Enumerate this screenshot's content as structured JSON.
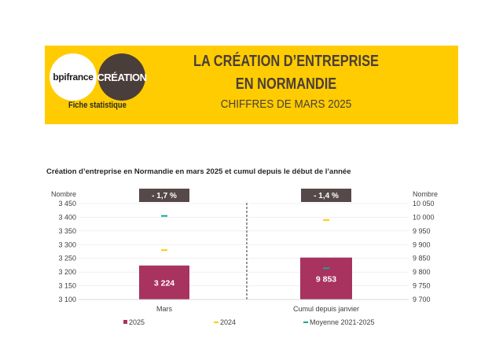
{
  "header": {
    "logo_left": "bpifrance",
    "logo_right": "CRÉATION",
    "fiche": "Fiche statistique",
    "title_line1": "LA CRÉATION D’ENTREPRISE",
    "title_line2": "EN NORMANDIE",
    "subtitle": "CHIFFRES DE MARS 2025",
    "banner_color": "#FECC00"
  },
  "chart_data": {
    "type": "bar",
    "title": "Création d’entreprise en Normandie en mars 2025 et cumul depuis le début de l’année",
    "colors": {
      "bar_2025": "#A8335F",
      "marker_2024": "#FECC00",
      "marker_avg": "#13A88E",
      "badge": "#55494A"
    },
    "legend": [
      "2025",
      "2024",
      "Moyenne 2021-2025"
    ],
    "panels": [
      {
        "category": "Mars",
        "axis_label": "Nombre",
        "ylim": [
          3100,
          3450
        ],
        "ticks": [
          3100,
          3150,
          3200,
          3250,
          3300,
          3350,
          3400,
          3450
        ],
        "tick_labels": [
          "3 100",
          "3 150",
          "3 200",
          "3 250",
          "3 300",
          "3 350",
          "3 400",
          "3 450"
        ],
        "value_2025": 3224,
        "value_label": "3 224",
        "value_2024": 3280,
        "value_avg": 3405,
        "badge": "- 1,7 %"
      },
      {
        "category": "Cumul depuis janvier",
        "axis_label": "Nombre",
        "ylim": [
          9700,
          10050
        ],
        "ticks": [
          9700,
          9750,
          9800,
          9850,
          9900,
          9950,
          10000,
          10050
        ],
        "tick_labels": [
          "9 700",
          "9 750",
          "9 800",
          "9 850",
          "9 900",
          "9 950",
          "10 000",
          "10 050"
        ],
        "value_2025": 9853,
        "value_label": "9 853",
        "value_2024": 9990,
        "value_avg": 9814,
        "badge": "- 1,4 %"
      }
    ]
  }
}
